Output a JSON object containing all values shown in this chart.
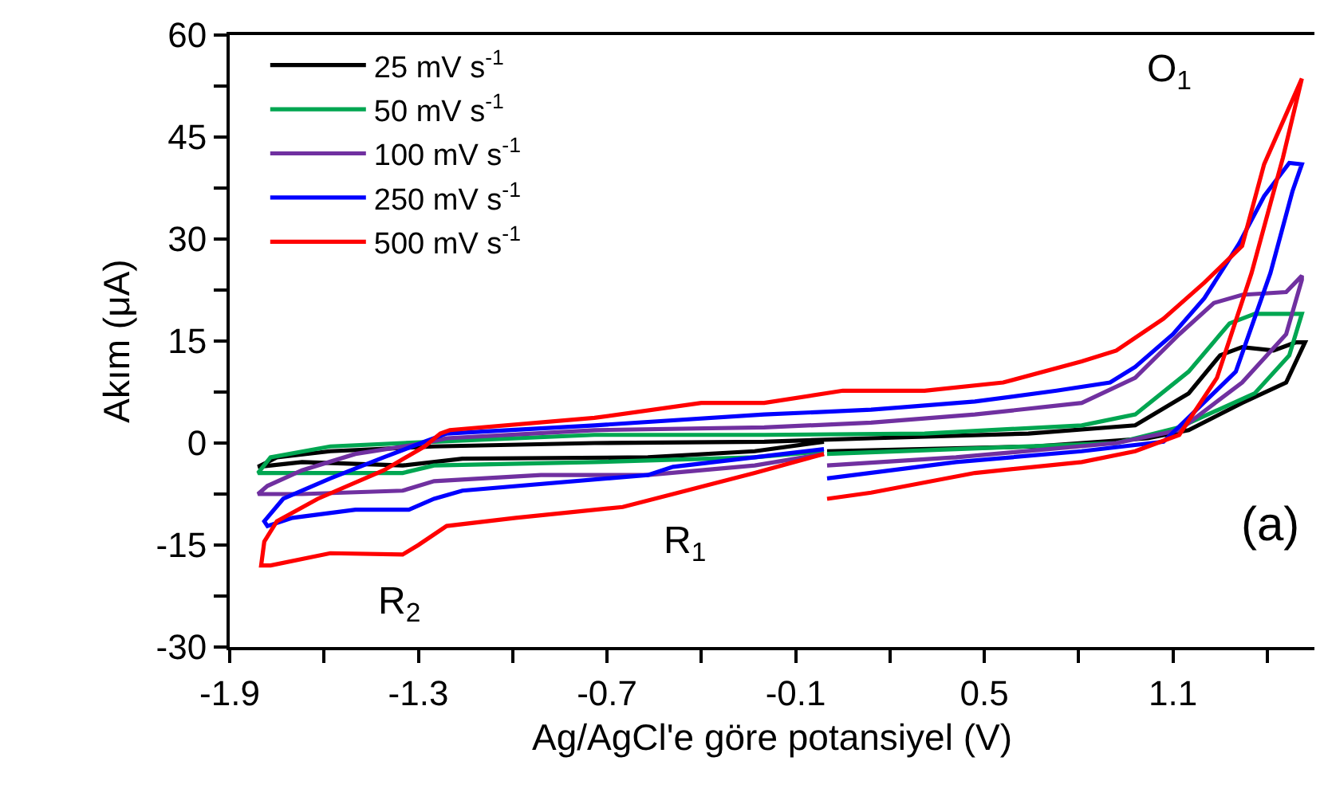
{
  "chart_data": {
    "type": "line",
    "xlabel": "Ag/AgCl'e göre potansiyel (V)",
    "ylabel": "Akım (μA)",
    "xlim": [
      -1.9,
      1.55
    ],
    "xticks": [
      -1.9,
      -1.3,
      -0.7,
      -0.1,
      0.5,
      1.1
    ],
    "ylim": [
      -30,
      60
    ],
    "yticks": [
      -30,
      -15,
      0,
      15,
      30,
      45,
      60
    ],
    "grid": false,
    "legend": "top left",
    "marker": "none",
    "line_style": "solid",
    "annotations": [
      "O$_{1}$",
      "R$_{1}$",
      "R$_{2}$",
      "(a)"
    ],
    "series": [
      {
        "name": "25 mV s$^{-1}$",
        "color": "#000000",
        "x": [
          0.0,
          0.66,
          1.02,
          1.15,
          1.32,
          1.46,
          1.52,
          1.49,
          1.42,
          1.32,
          1.25,
          1.15,
          0.98,
          0.64,
          0.14,
          -0.2,
          -0.74,
          -1.25,
          -1.58,
          -1.75,
          -1.81,
          -1.67,
          -1.35,
          -1.16,
          -0.57,
          -0.23,
          -0.01
        ],
        "values": [
          -1.2,
          -0.5,
          0.7,
          1.9,
          5.9,
          8.9,
          14.8,
          14.8,
          13.6,
          14.1,
          12.9,
          7.3,
          2.6,
          1.4,
          0.7,
          0.2,
          0,
          -0.5,
          -1.2,
          -2.1,
          -3.5,
          -2.8,
          -3.3,
          -2.3,
          -2.1,
          -1.2,
          0.2
        ]
      },
      {
        "name": "50 mV s$^{-1}$",
        "color": "#00a651",
        "x": [
          0.0,
          0.41,
          0.92,
          1.12,
          1.36,
          1.47,
          1.51,
          1.47,
          1.36,
          1.28,
          1.15,
          0.98,
          0.81,
          0.31,
          -0.2,
          -0.74,
          -1.25,
          -1.58,
          -1.77,
          -1.81,
          -1.67,
          -1.35,
          -1.25,
          -0.74,
          -0.23,
          -0.01
        ],
        "values": [
          -1.6,
          -0.9,
          0,
          2.3,
          7.3,
          12.9,
          19,
          19,
          19,
          17.6,
          10.5,
          4.2,
          2.6,
          1.4,
          1.2,
          1.2,
          0.2,
          -0.5,
          -2.1,
          -4.4,
          -4.4,
          -4.4,
          -3.3,
          -2.8,
          -2.1,
          -1.2
        ]
      },
      {
        "name": "100 mV s$^{-1}$",
        "color": "#7030a0",
        "x": [
          0.0,
          0.41,
          0.92,
          1.12,
          1.32,
          1.46,
          1.51,
          1.51,
          1.46,
          1.32,
          1.23,
          1.12,
          0.98,
          0.81,
          0.47,
          0.14,
          -0.2,
          -0.74,
          -1.21,
          -1.28,
          -1.5,
          -1.67,
          -1.78,
          -1.81,
          -1.67,
          -1.35,
          -1.25,
          -0.91,
          -0.57,
          -0.23,
          -0.01
        ],
        "values": [
          -3.3,
          -2.1,
          0,
          1.9,
          8.9,
          16,
          24,
          24.6,
          22.2,
          21.8,
          20.6,
          16,
          9.6,
          5.9,
          4.2,
          3.0,
          2.3,
          1.9,
          0.7,
          0,
          -1.6,
          -4,
          -6.3,
          -7.5,
          -7.5,
          -7,
          -5.6,
          -4.7,
          -4.7,
          -3.3,
          -1.6
        ]
      },
      {
        "name": "250 mV s$^{-1}$",
        "color": "#0000ff",
        "x": [
          0.0,
          0.41,
          0.81,
          1.07,
          1.3,
          1.41,
          1.48,
          1.51,
          1.47,
          1.39,
          1.31,
          1.2,
          1.1,
          0.98,
          0.9,
          0.73,
          0.47,
          0.14,
          -0.2,
          -0.74,
          -1.21,
          -1.28,
          -1.41,
          -1.58,
          -1.73,
          -1.79,
          -1.78,
          -1.7,
          -1.5,
          -1.33,
          -1.25,
          -1.16,
          -0.57,
          -0.49,
          -0.23,
          -0.01
        ],
        "values": [
          -5.2,
          -2.8,
          -1.2,
          0.2,
          10.5,
          25,
          37,
          41,
          41.2,
          36.3,
          29.3,
          21.3,
          16,
          11.2,
          8.9,
          7.7,
          6.1,
          4.9,
          4.2,
          2.6,
          1.4,
          0.2,
          -2.1,
          -5.2,
          -8.2,
          -11.5,
          -12.2,
          -11,
          -9.8,
          -9.8,
          -8.2,
          -7,
          -4.7,
          -3.5,
          -2.1,
          -0.9
        ]
      },
      {
        "name": "500 mV s$^{-1}$",
        "color": "#ff0000",
        "x": [
          0.0,
          0.14,
          0.47,
          0.81,
          0.98,
          1.12,
          1.24,
          1.35,
          1.45,
          1.51,
          1.39,
          1.32,
          1.2,
          1.07,
          0.92,
          0.81,
          0.56,
          0.31,
          0.05,
          -0.2,
          -0.4,
          -0.74,
          -1.2,
          -1.23,
          -1.28,
          -1.41,
          -1.62,
          -1.75,
          -1.79,
          -1.8,
          -1.77,
          -1.58,
          -1.35,
          -1.3,
          -1.21,
          -0.99,
          -0.65,
          -0.49,
          -0.23,
          -0.01
        ],
        "values": [
          -8.2,
          -7.3,
          -4.4,
          -2.8,
          -1.2,
          1.2,
          9.6,
          25,
          42,
          53.6,
          41,
          29,
          23.6,
          18.3,
          13.6,
          12,
          8.9,
          7.7,
          7.7,
          5.9,
          5.9,
          3.7,
          1.9,
          1.4,
          -0.5,
          -4,
          -8.2,
          -11.5,
          -14.5,
          -18,
          -18,
          -16.2,
          -16.4,
          -15,
          -12.2,
          -11,
          -9.4,
          -7.5,
          -4.4,
          -1.6
        ]
      }
    ]
  }
}
